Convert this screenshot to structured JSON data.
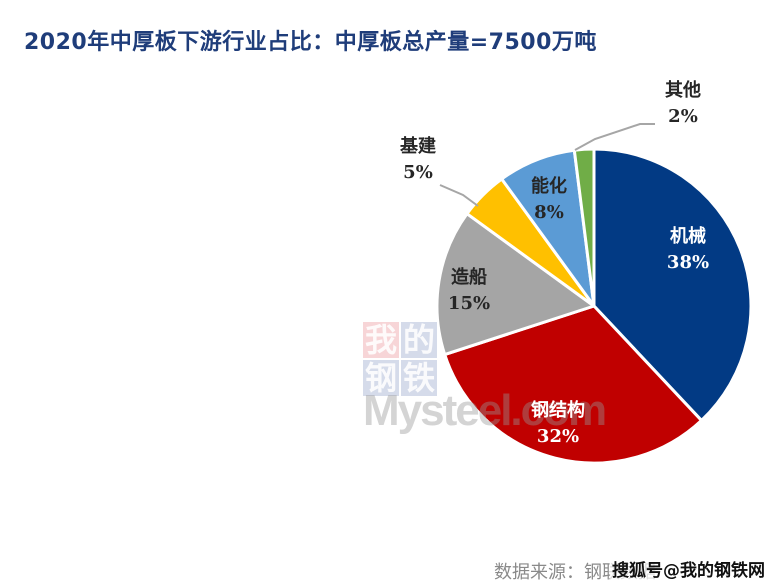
{
  "title": "2020年中厚板下游行业占比：中厚板总产量=7500万吨",
  "chart_data": {
    "type": "pie",
    "title": "2020年中厚板下游行业占比：中厚板总产量=7500万吨",
    "total": "7500万吨",
    "start_angle": "12 o'clock, clockwise",
    "slices": [
      {
        "name": "机械",
        "value": 38,
        "label": "38%",
        "color": "#023A84",
        "label_color": "#FFFFFF"
      },
      {
        "name": "钢结构",
        "value": 32,
        "label": "32%",
        "color": "#C00000",
        "label_color": "#FFFFFF"
      },
      {
        "name": "造船",
        "value": 15,
        "label": "15%",
        "color": "#A5A5A5",
        "label_color": "#262626"
      },
      {
        "name": "基建",
        "value": 5,
        "label": "5%",
        "color": "#FFC000",
        "label_color": "#262626"
      },
      {
        "name": "能化",
        "value": 8,
        "label": "8%",
        "color": "#5B9BD5",
        "label_color": "#262626"
      },
      {
        "name": "其他",
        "value": 2,
        "label": "2%",
        "color": "#70AD47",
        "label_color": "#262626"
      }
    ],
    "legend": "none (data labels with category name and percent)"
  },
  "labels": {
    "jixie": {
      "name": "机械",
      "pct": "38%"
    },
    "gangjiegou": {
      "name": "钢结构",
      "pct": "32%"
    },
    "zaochuan": {
      "name": "造船",
      "pct": "15%"
    },
    "jijian": {
      "name": "基建",
      "pct": "5%"
    },
    "nenghua": {
      "name": "能化",
      "pct": "8%"
    },
    "qita": {
      "name": "其他",
      "pct": "2%"
    }
  },
  "watermark": {
    "chars": [
      "我",
      "的",
      "钢",
      "铁"
    ],
    "brand": "Mysteel.com"
  },
  "footer": {
    "source": "数据来源：钢联数据",
    "sohu": "搜狐号@我的钢铁网"
  }
}
